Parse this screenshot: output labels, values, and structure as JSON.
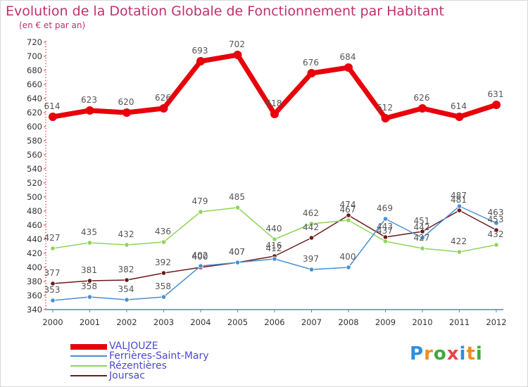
{
  "header": {
    "title": "Evolution de la Dotation Globale de Fonctionnement par Habitant",
    "subtitle": "(en € et par an)"
  },
  "logo": {
    "text": "Proxiti",
    "letter_colors": [
      "#2e8fd8",
      "#f18d1f",
      "#3daa3d",
      "#e54848",
      "#2e8fd8",
      "#f18d1f",
      "#3daa3d"
    ]
  },
  "chart_data": {
    "type": "line",
    "title": "Evolution de la Dotation Globale de Fonctionnement par Habitant",
    "subtitle": "(en € et par an)",
    "xlabel": "",
    "ylabel": "",
    "x": [
      "2000",
      "2001",
      "2002",
      "2003",
      "2004",
      "2005",
      "2006",
      "2007",
      "2008",
      "2009",
      "2010",
      "2011",
      "2012"
    ],
    "ylim": [
      340,
      720
    ],
    "yticks": [
      340,
      360,
      380,
      400,
      420,
      440,
      460,
      480,
      500,
      520,
      540,
      560,
      580,
      600,
      620,
      640,
      660,
      680,
      700,
      720
    ],
    "grid": false,
    "legend_position": "bottom-left",
    "series": [
      {
        "name": "VALJOUZE",
        "color": "#e8000b",
        "values": [
          614,
          623,
          620,
          626,
          693,
          702,
          618,
          676,
          684,
          612,
          626,
          614,
          631
        ]
      },
      {
        "name": "Ferrières-Saint-Mary",
        "color": "#4a8fcf",
        "values": [
          353,
          358,
          354,
          358,
          402,
          407,
          412,
          397,
          400,
          469,
          442,
          487,
          463
        ]
      },
      {
        "name": "Rézentières",
        "color": "#8fd45a",
        "values": [
          427,
          435,
          432,
          436,
          479,
          485,
          440,
          462,
          467,
          437,
          427,
          422,
          432
        ]
      },
      {
        "name": "Joursac",
        "color": "#6b1a1a",
        "values": [
          377,
          381,
          382,
          392,
          400,
          407,
          416,
          442,
          474,
          443,
          451,
          481,
          453
        ]
      }
    ]
  }
}
